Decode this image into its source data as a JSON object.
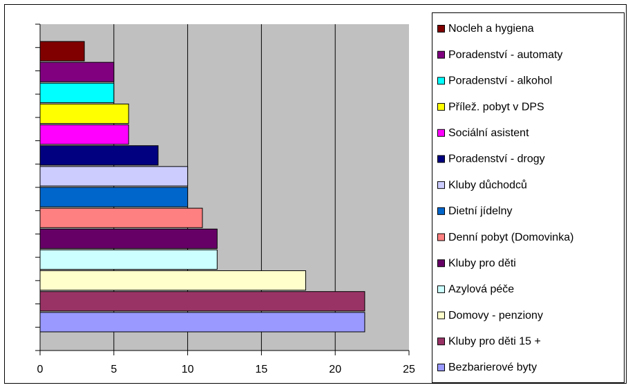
{
  "chart_data": {
    "type": "bar",
    "orientation": "horizontal",
    "categories": [
      "Nocleh a hygiena",
      "Poradenství - automaty",
      "Poradenství - alkohol",
      "Přílež. pobyt v DPS",
      "Sociální asistent",
      "Poradenství - drogy",
      "Kluby důchodců",
      "Dietní jídelny",
      "Denní pobyt (Domovinka)",
      "Kluby pro děti",
      "Azylová péče",
      "Domovy - penziony",
      "Kluby pro děti 15 +",
      "Bezbarierové byty"
    ],
    "values": [
      3,
      5,
      5,
      6,
      6,
      8,
      10,
      10,
      11,
      12,
      12,
      18,
      22,
      22
    ],
    "colors": [
      "#800000",
      "#800080",
      "#00ffff",
      "#ffff00",
      "#ff00ff",
      "#000080",
      "#ccccff",
      "#0066cc",
      "#ff8080",
      "#660066",
      "#ccffff",
      "#ffffcc",
      "#993366",
      "#9999ff"
    ],
    "xlim": [
      0,
      25
    ],
    "xticks": [
      0,
      5,
      10,
      15,
      20,
      25
    ],
    "grid": true,
    "legend": "right"
  }
}
